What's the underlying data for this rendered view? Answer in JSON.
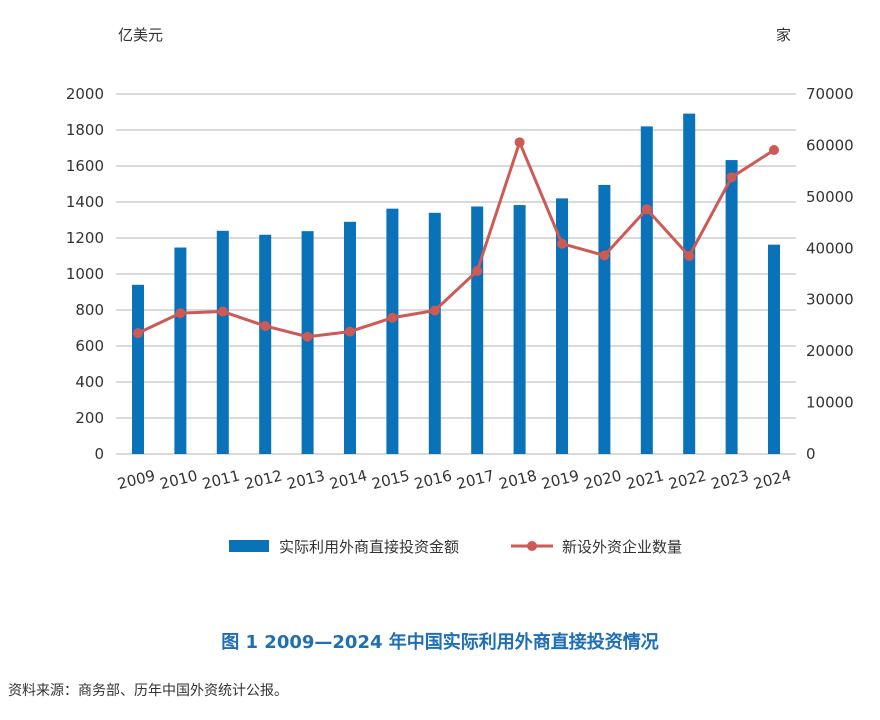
{
  "chart_data": {
    "type": "bar+line",
    "left_unit": "亿美元",
    "right_unit": "家",
    "categories": [
      "2009",
      "2010",
      "2011",
      "2012",
      "2013",
      "2014",
      "2015",
      "2016",
      "2017",
      "2018",
      "2019",
      "2020",
      "2021",
      "2022",
      "2023",
      "2024"
    ],
    "series": [
      {
        "name": "实际利用外商直接投资金额",
        "type": "bar",
        "axis": "left",
        "color": "#0a72b8",
        "values": [
          940,
          1147,
          1240,
          1218,
          1238,
          1290,
          1363,
          1340,
          1375,
          1383,
          1420,
          1495,
          1820,
          1891,
          1633,
          1163
        ]
      },
      {
        "name": "新设外资企业数量",
        "type": "line",
        "axis": "right",
        "color": "#cd5a55",
        "values": [
          23500,
          27400,
          27700,
          24900,
          22800,
          23800,
          26500,
          27900,
          35600,
          60600,
          40900,
          38600,
          47600,
          38500,
          53800,
          59100
        ]
      }
    ],
    "left_axis": {
      "ylim": [
        0,
        2000
      ],
      "ticks": [
        "0",
        "200",
        "400",
        "600",
        "800",
        "1000",
        "1200",
        "1400",
        "1600",
        "1800",
        "2000"
      ]
    },
    "right_axis": {
      "ylim": [
        0,
        70000
      ],
      "ticks": [
        "0",
        "10000",
        "20000",
        "30000",
        "40000",
        "50000",
        "60000",
        "70000"
      ]
    },
    "grid": true,
    "legend_position": "bottom"
  },
  "caption": "图 1   2009—2024 年中国实际利用外商直接投资情况",
  "source": "资料来源：商务部、历年中国外资统计公报。"
}
